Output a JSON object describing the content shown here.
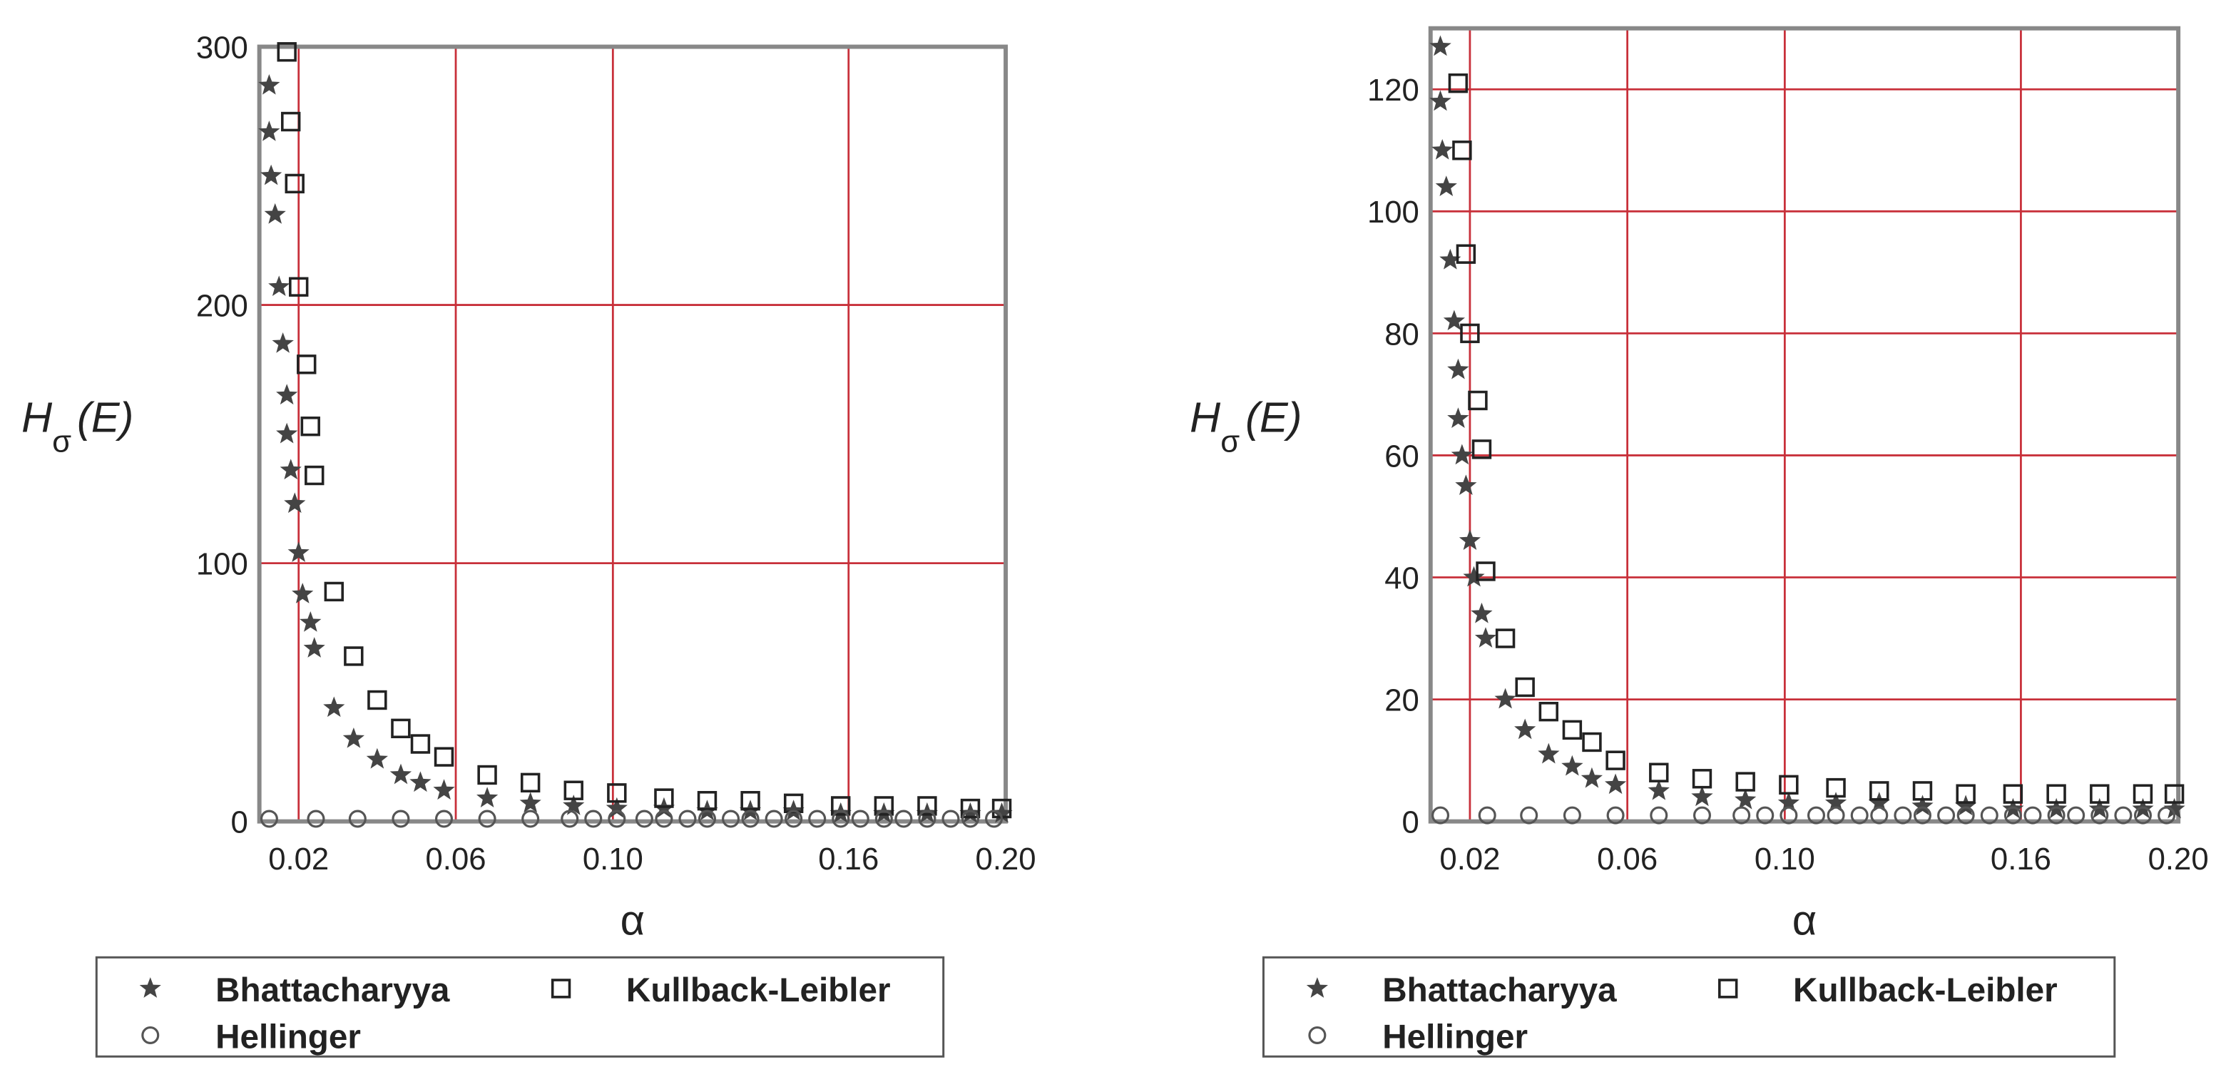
{
  "chart_data": [
    {
      "type": "scatter",
      "xlabel": "α",
      "ylabel": [
        "H",
        "σ",
        "(E)"
      ],
      "xlim": [
        0.01,
        0.2
      ],
      "ylim": [
        0,
        300
      ],
      "xticks": [
        0.02,
        0.06,
        {
          "value": 0.1,
          "label": "0.10"
        },
        0.16,
        {
          "value": 0.2,
          "label": "0.20"
        }
      ],
      "yticks": [
        0,
        100,
        200,
        300
      ],
      "grid": true,
      "series": [
        {
          "name": "Bhattacharyya",
          "marker": "star",
          "color": "#444444",
          "x": [
            0.0125,
            0.0125,
            0.013,
            0.014,
            0.015,
            0.016,
            0.017,
            0.017,
            0.018,
            0.019,
            0.02,
            0.021,
            0.023,
            0.024,
            0.029,
            0.034,
            0.04,
            0.046,
            0.051,
            0.057,
            0.068,
            0.079,
            0.09,
            0.101,
            0.113,
            0.124,
            0.135,
            0.146,
            0.158,
            0.169,
            0.18,
            0.191,
            0.199
          ],
          "values": [
            285,
            267,
            250,
            235,
            207,
            185,
            165,
            150,
            136,
            123,
            104,
            88,
            77,
            67,
            44,
            32,
            24,
            18,
            15,
            12,
            9,
            7,
            6,
            5,
            5,
            4,
            4,
            4,
            3,
            3,
            3,
            3,
            3
          ]
        },
        {
          "name": "Kullback-Leibler",
          "marker": "square",
          "color": "#222222",
          "x": [
            0.017,
            0.018,
            0.019,
            0.02,
            0.022,
            0.023,
            0.024,
            0.029,
            0.034,
            0.04,
            0.046,
            0.051,
            0.057,
            0.068,
            0.079,
            0.09,
            0.101,
            0.113,
            0.124,
            0.135,
            0.146,
            0.158,
            0.169,
            0.18,
            0.191,
            0.199
          ],
          "values": [
            298,
            271,
            247,
            207,
            177,
            153,
            134,
            89,
            64,
            47,
            36,
            30,
            25,
            18,
            15,
            12,
            11,
            9,
            8,
            8,
            7,
            6,
            6,
            6,
            5,
            5
          ]
        },
        {
          "name": "Hellinger",
          "marker": "circle",
          "color": "#555555",
          "x": [
            0.0125,
            0.0244,
            0.035,
            0.046,
            0.057,
            0.068,
            0.079,
            0.089,
            0.095,
            0.101,
            0.108,
            0.113,
            0.119,
            0.124,
            0.13,
            0.135,
            0.141,
            0.146,
            0.152,
            0.158,
            0.163,
            0.169,
            0.174,
            0.18,
            0.186,
            0.191,
            0.197
          ],
          "values": [
            1,
            1,
            1,
            1,
            1,
            1,
            1,
            1,
            1,
            1,
            1,
            1,
            1,
            1,
            1,
            1,
            1,
            1,
            1,
            1,
            1,
            1,
            1,
            1,
            1,
            1,
            1
          ]
        }
      ]
    },
    {
      "type": "scatter",
      "xlabel": "α",
      "ylabel": [
        "H",
        "σ",
        "(E)"
      ],
      "xlim": [
        0.01,
        0.2
      ],
      "ylim": [
        0,
        130
      ],
      "xticks": [
        0.02,
        0.06,
        {
          "value": 0.1,
          "label": "0.10"
        },
        0.16,
        {
          "value": 0.2,
          "label": "0.20"
        }
      ],
      "yticks": [
        0,
        20,
        40,
        60,
        80,
        100,
        120
      ],
      "grid": true,
      "series": [
        {
          "name": "Bhattacharyya",
          "marker": "star",
          "color": "#444444",
          "x": [
            0.0125,
            0.0125,
            0.013,
            0.014,
            0.015,
            0.016,
            0.017,
            0.017,
            0.018,
            0.019,
            0.02,
            0.021,
            0.023,
            0.024,
            0.029,
            0.034,
            0.04,
            0.046,
            0.051,
            0.057,
            0.068,
            0.079,
            0.09,
            0.101,
            0.113,
            0.124,
            0.135,
            0.146,
            0.158,
            0.169,
            0.18,
            0.191,
            0.199
          ],
          "values": [
            127,
            118,
            110,
            104,
            92,
            82,
            74,
            66,
            60,
            55,
            46,
            40,
            34,
            30,
            20,
            15,
            11,
            9,
            7,
            6,
            5,
            4,
            3.5,
            3,
            3,
            3,
            2.5,
            2.5,
            2,
            2,
            2,
            2,
            2
          ]
        },
        {
          "name": "Kullback-Leibler",
          "marker": "square",
          "color": "#222222",
          "x": [
            0.017,
            0.018,
            0.019,
            0.02,
            0.022,
            0.023,
            0.024,
            0.029,
            0.034,
            0.04,
            0.046,
            0.051,
            0.057,
            0.068,
            0.079,
            0.09,
            0.101,
            0.113,
            0.124,
            0.135,
            0.146,
            0.158,
            0.169,
            0.18,
            0.191,
            0.199
          ],
          "values": [
            121,
            110,
            93,
            80,
            69,
            61,
            41,
            30,
            22,
            18,
            15,
            13,
            10,
            8,
            7,
            6.5,
            6,
            5.5,
            5,
            5,
            4.5,
            4.5,
            4.5,
            4.5,
            4.5,
            4.5
          ]
        },
        {
          "name": "Hellinger",
          "marker": "circle",
          "color": "#555555",
          "x": [
            0.0125,
            0.0244,
            0.035,
            0.046,
            0.057,
            0.068,
            0.079,
            0.089,
            0.095,
            0.101,
            0.108,
            0.113,
            0.119,
            0.124,
            0.13,
            0.135,
            0.141,
            0.146,
            0.152,
            0.158,
            0.163,
            0.169,
            0.174,
            0.18,
            0.186,
            0.191,
            0.197
          ],
          "values": [
            1,
            1,
            1,
            1,
            1,
            1,
            1,
            1,
            1,
            1,
            1,
            1,
            1,
            1,
            1,
            1,
            1,
            1,
            1,
            1,
            1,
            1,
            1,
            1,
            1,
            1,
            1
          ]
        }
      ]
    }
  ]
}
